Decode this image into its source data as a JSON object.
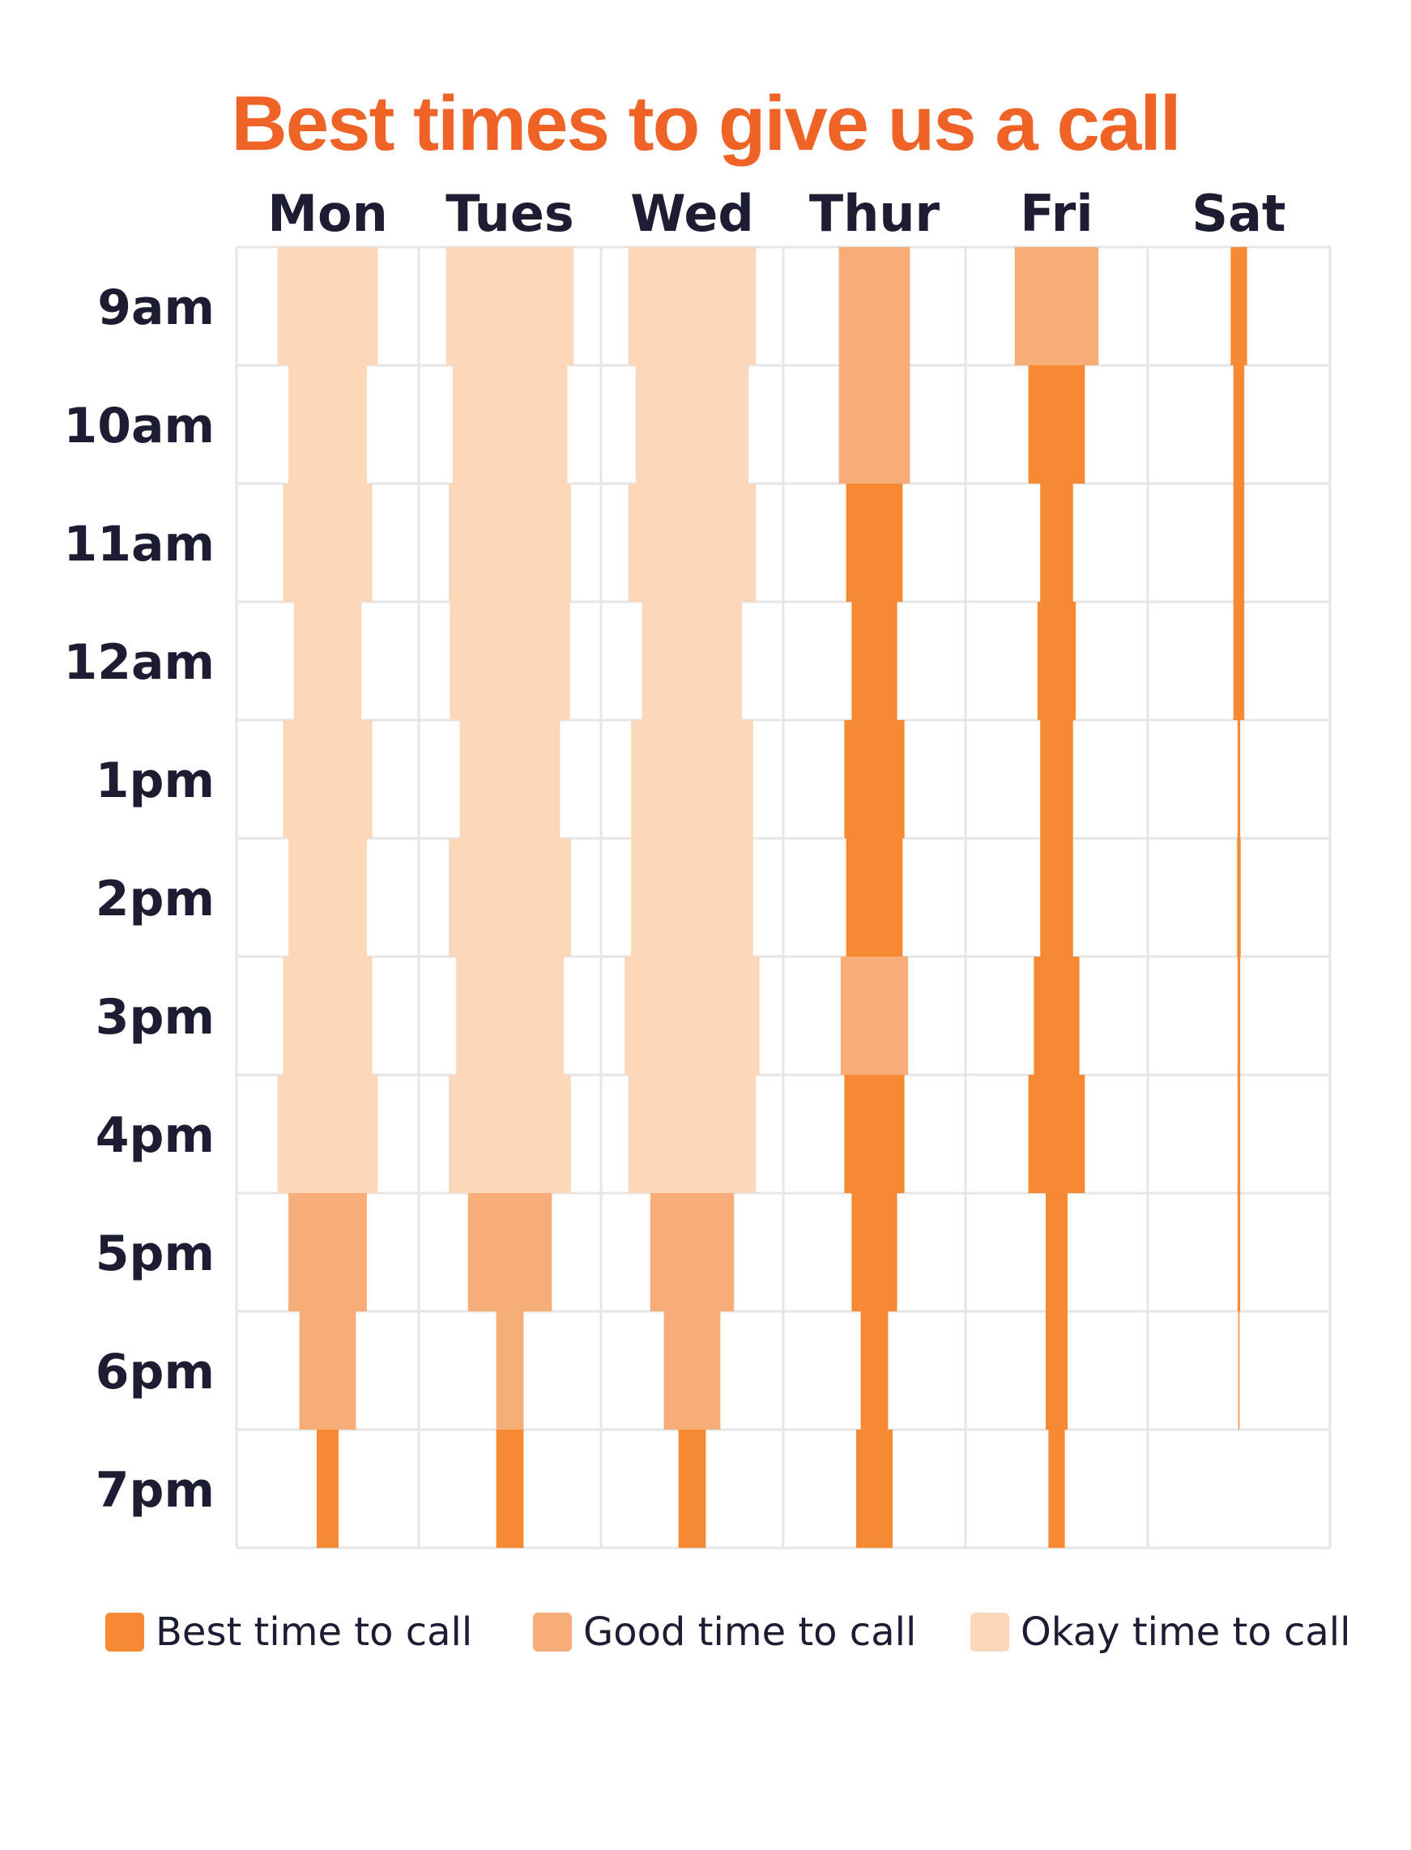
{
  "title": "Best times to give us a call",
  "colors": {
    "title": "#ef6327",
    "best": "#f58a32",
    "good": "#f7ad78",
    "okay": "#fcd7ba",
    "grid": "#e6e6e6",
    "text": "#1c1c33"
  },
  "chart_data": {
    "type": "heatmap",
    "title": "Best times to give us a call",
    "days": [
      "Mon",
      "Tues",
      "Wed",
      "Thur",
      "Fri",
      "Sat"
    ],
    "times": [
      "9am",
      "10am",
      "11am",
      "12am",
      "1pm",
      "2pm",
      "3pm",
      "4pm",
      "5pm",
      "6pm",
      "7pm"
    ],
    "levels": [
      "best",
      "good",
      "okay"
    ],
    "legend": [
      {
        "key": "best",
        "label": "Best time to call"
      },
      {
        "key": "good",
        "label": "Good time to call"
      },
      {
        "key": "okay",
        "label": "Okay time to call"
      }
    ],
    "series": [
      {
        "day": "Mon",
        "volume": [
          0.55,
          0.43,
          0.49,
          0.37,
          0.49,
          0.43,
          0.49,
          0.55,
          0.43,
          0.31,
          0.12
        ],
        "level": [
          "okay",
          "okay",
          "okay",
          "okay",
          "okay",
          "okay",
          "okay",
          "okay",
          "good",
          "good",
          "best"
        ]
      },
      {
        "day": "Tues",
        "volume": [
          0.7,
          0.63,
          0.67,
          0.66,
          0.55,
          0.67,
          0.59,
          0.67,
          0.46,
          0.15,
          0.15
        ],
        "level": [
          "okay",
          "okay",
          "okay",
          "okay",
          "okay",
          "okay",
          "okay",
          "okay",
          "good",
          "good",
          "best"
        ]
      },
      {
        "day": "Wed",
        "volume": [
          0.7,
          0.62,
          0.7,
          0.55,
          0.67,
          0.67,
          0.74,
          0.7,
          0.46,
          0.31,
          0.15
        ],
        "level": [
          "okay",
          "okay",
          "okay",
          "okay",
          "okay",
          "okay",
          "okay",
          "okay",
          "good",
          "good",
          "best"
        ]
      },
      {
        "day": "Thur",
        "volume": [
          0.39,
          0.39,
          0.31,
          0.25,
          0.33,
          0.31,
          0.37,
          0.33,
          0.25,
          0.15,
          0.2
        ],
        "level": [
          "good",
          "good",
          "best",
          "best",
          "best",
          "best",
          "good",
          "best",
          "best",
          "best",
          "best"
        ]
      },
      {
        "day": "Fri",
        "volume": [
          0.46,
          0.31,
          0.18,
          0.21,
          0.18,
          0.18,
          0.25,
          0.31,
          0.12,
          0.12,
          0.09
        ],
        "level": [
          "good",
          "best",
          "best",
          "best",
          "best",
          "best",
          "best",
          "best",
          "best",
          "best",
          "best"
        ]
      },
      {
        "day": "Sat",
        "volume": [
          0.09,
          0.06,
          0.06,
          0.06,
          0.015,
          0.02,
          0.015,
          0.015,
          0.015,
          0.005,
          0
        ],
        "level": [
          "best",
          "best",
          "best",
          "best",
          "best",
          "best",
          "best",
          "best",
          "best",
          "best",
          "best"
        ]
      }
    ]
  }
}
